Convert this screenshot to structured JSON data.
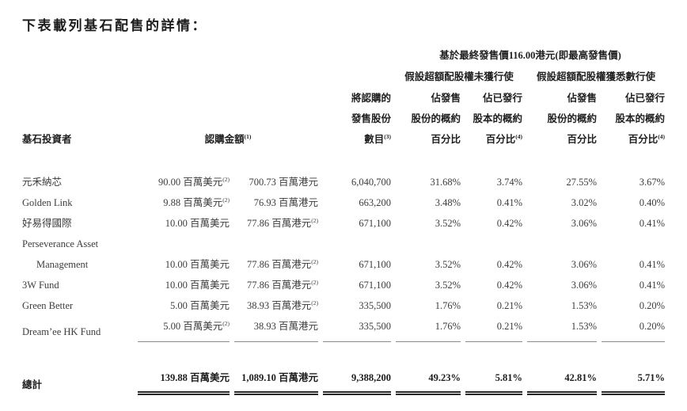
{
  "title": "下表載列基石配售的詳情：",
  "colors": {
    "text": "#3d3d3d",
    "heading": "#1c1c1c",
    "rule_single": "#8a8a8a",
    "rule_double": "#2a2a2a",
    "background": "#ffffff"
  },
  "table": {
    "group_header_price": "基於最終發售價116.00港元(即最高發售價)",
    "group_header_no_exercise": "假設超額配股權未獲行使",
    "group_header_full_exercise": "假設超額配股權獲悉數行使",
    "col_investor": "基石投資者",
    "col_subscription_label": "認購金額",
    "col_subscription_sup": "(1)",
    "col_shares": [
      "將認購的",
      "發售股份",
      "數目"
    ],
    "col_shares_sup": "(3)",
    "col_offer_pct": [
      "佔發售",
      "股份的概約",
      "百分比"
    ],
    "col_issued_pct": [
      "佔已發行",
      "股本的概約",
      "百分比"
    ],
    "col_issued_pct_sup": "(4)",
    "rows": [
      {
        "name_lines": [
          "元禾納芯"
        ],
        "usd": "90.00 百萬美元",
        "usd_sup": "(2)",
        "hkd": "700.73 百萬港元",
        "hkd_sup": "",
        "shares": "6,040,700",
        "offer_pct_a": "31.68%",
        "issued_pct_a": "3.74%",
        "offer_pct_b": "27.55%",
        "issued_pct_b": "3.67%"
      },
      {
        "name_lines": [
          "Golden Link"
        ],
        "usd": "9.88 百萬美元",
        "usd_sup": "(2)",
        "hkd": "76.93 百萬港元",
        "hkd_sup": "",
        "shares": "663,200",
        "offer_pct_a": "3.48%",
        "issued_pct_a": "0.41%",
        "offer_pct_b": "3.02%",
        "issued_pct_b": "0.40%"
      },
      {
        "name_lines": [
          "好易得國際"
        ],
        "usd": "10.00 百萬美元",
        "usd_sup": "",
        "hkd": "77.86 百萬港元",
        "hkd_sup": "(2)",
        "shares": "671,100",
        "offer_pct_a": "3.52%",
        "issued_pct_a": "0.42%",
        "offer_pct_b": "3.06%",
        "issued_pct_b": "0.41%"
      },
      {
        "name_lines": [
          "Perseverance Asset",
          "Management"
        ],
        "usd": "10.00 百萬美元",
        "usd_sup": "",
        "hkd": "77.86 百萬港元",
        "hkd_sup": "(2)",
        "shares": "671,100",
        "offer_pct_a": "3.52%",
        "issued_pct_a": "0.42%",
        "offer_pct_b": "3.06%",
        "issued_pct_b": "0.41%"
      },
      {
        "name_lines": [
          "3W Fund"
        ],
        "usd": "10.00 百萬美元",
        "usd_sup": "",
        "hkd": "77.86 百萬港元",
        "hkd_sup": "(2)",
        "shares": "671,100",
        "offer_pct_a": "3.52%",
        "issued_pct_a": "0.42%",
        "offer_pct_b": "3.06%",
        "issued_pct_b": "0.41%"
      },
      {
        "name_lines": [
          "Green Better"
        ],
        "usd": "5.00 百萬美元",
        "usd_sup": "",
        "hkd": "38.93 百萬港元",
        "hkd_sup": "(2)",
        "shares": "335,500",
        "offer_pct_a": "1.76%",
        "issued_pct_a": "0.21%",
        "offer_pct_b": "1.53%",
        "issued_pct_b": "0.20%"
      },
      {
        "name_lines": [
          "Dream’ee HK Fund"
        ],
        "usd": "5.00 百萬美元",
        "usd_sup": "(2)",
        "hkd": "38.93 百萬港元",
        "hkd_sup": "",
        "shares": "335,500",
        "offer_pct_a": "1.76%",
        "issued_pct_a": "0.21%",
        "offer_pct_b": "1.53%",
        "issued_pct_b": "0.20%"
      }
    ],
    "total": {
      "label": "總計",
      "usd": "139.88 百萬美元",
      "hkd": "1,089.10 百萬港元",
      "shares": "9,388,200",
      "offer_pct_a": "49.23%",
      "issued_pct_a": "5.81%",
      "offer_pct_b": "42.81%",
      "issued_pct_b": "5.71%"
    }
  }
}
